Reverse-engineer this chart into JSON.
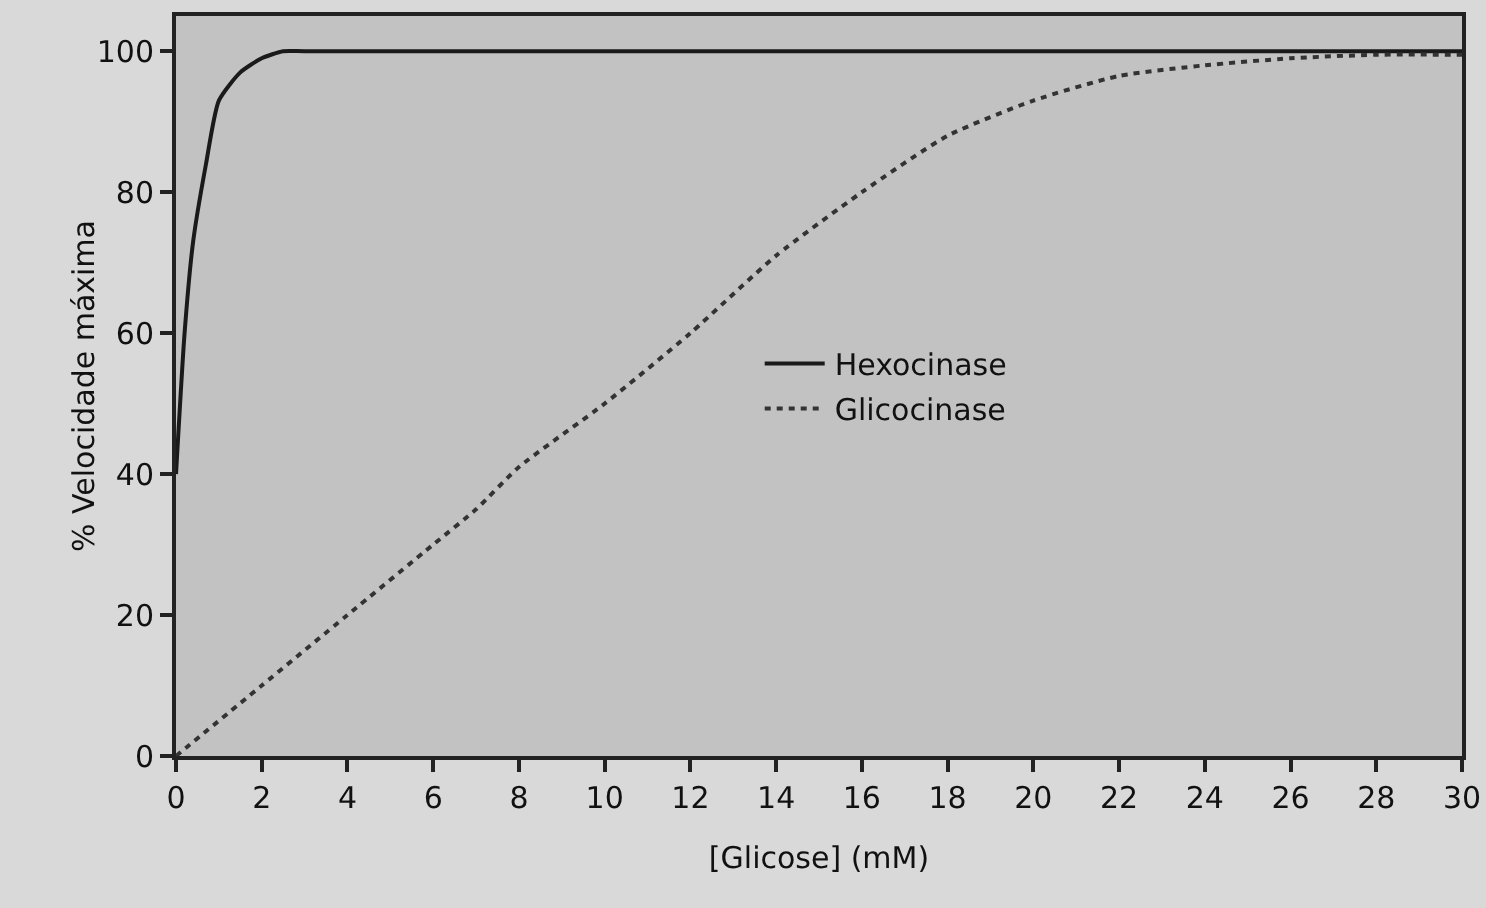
{
  "chart_data": {
    "type": "line",
    "xlabel": "[Glicose] (mM)",
    "ylabel": "% Velocidade máxima",
    "xlim": [
      0,
      30
    ],
    "xticks": [
      0,
      2,
      4,
      6,
      8,
      10,
      12,
      14,
      16,
      18,
      20,
      22,
      24,
      26,
      28,
      30
    ],
    "ylim": [
      0,
      105
    ],
    "yticks": [
      0,
      20,
      40,
      60,
      80,
      100
    ],
    "grid": false,
    "legend": "right",
    "marker": "none",
    "series": [
      {
        "name": "Hexocinase",
        "color": "#1a1a1a",
        "line_style": "solid",
        "x": [
          0,
          0.2,
          0.4,
          0.7,
          1,
          1.5,
          2,
          2.5,
          3,
          30
        ],
        "values": [
          40,
          60,
          73,
          84,
          93,
          97,
          99,
          100,
          100,
          100
        ]
      },
      {
        "name": "Glicocinase",
        "color": "#333333",
        "line_style": "dotted",
        "x": [
          0,
          2,
          4,
          6,
          7,
          8,
          10,
          12,
          14,
          16,
          18,
          20,
          22,
          24,
          26,
          28,
          30
        ],
        "values": [
          0,
          10,
          20,
          30,
          35,
          41,
          50,
          60,
          71,
          80,
          88,
          93,
          96.5,
          98,
          99,
          99.5,
          99.5
        ]
      }
    ]
  }
}
